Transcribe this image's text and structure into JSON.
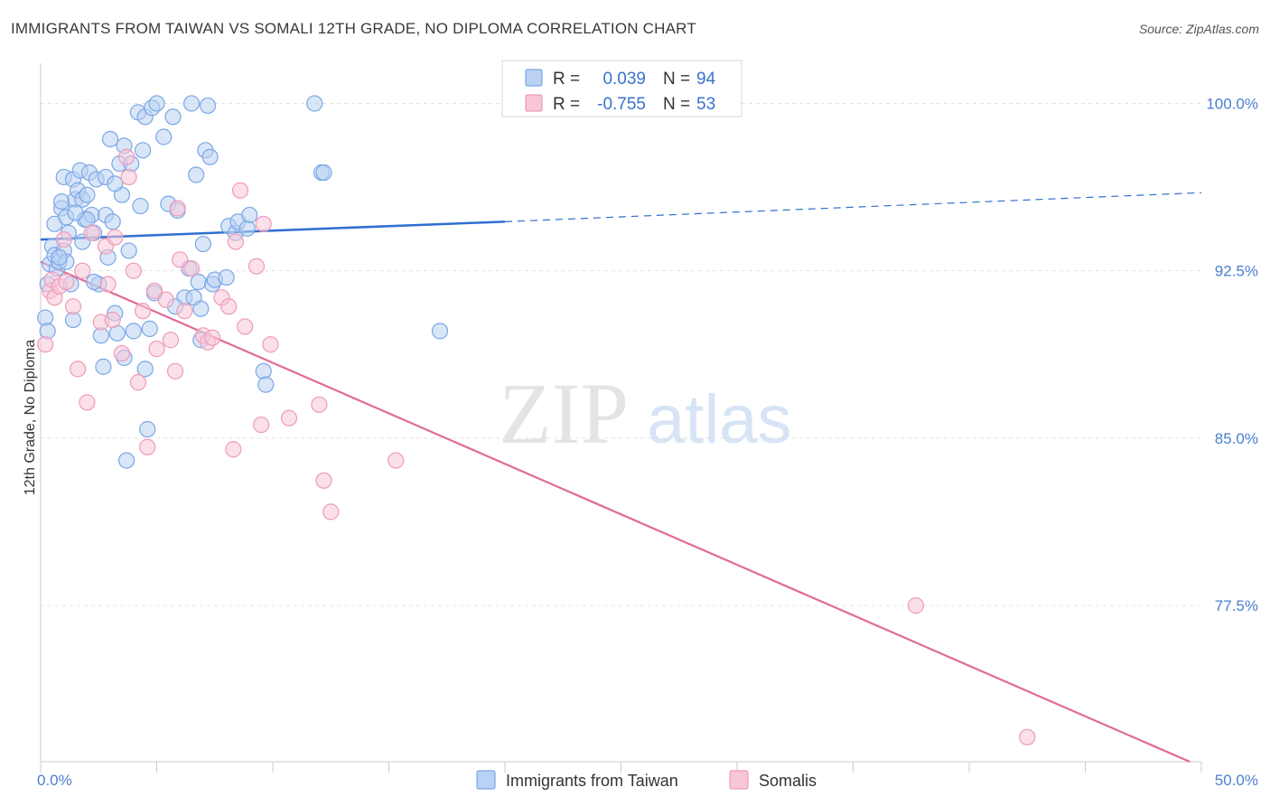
{
  "header": {
    "title": "IMMIGRANTS FROM TAIWAN VS SOMALI 12TH GRADE, NO DIPLOMA CORRELATION CHART",
    "source": "Source: ZipAtlas.com"
  },
  "watermark": {
    "zip": "ZIP",
    "atlas": "atlas"
  },
  "chart_data": {
    "type": "scatter",
    "title": "IMMIGRANTS FROM TAIWAN VS SOMALI 12TH GRADE, NO DIPLOMA CORRELATION CHART",
    "ylabel": "12th Grade, No Diploma",
    "xlim": [
      0,
      50
    ],
    "ylim": [
      70.5,
      101.8
    ],
    "x_tick_labels": [
      {
        "value": 0,
        "label": "0.0%"
      },
      {
        "value": 50,
        "label": "50.0%"
      }
    ],
    "y_ticks": [
      {
        "value": 100,
        "label": "100.0%"
      },
      {
        "value": 92.5,
        "label": "92.5%"
      },
      {
        "value": 85,
        "label": "85.0%"
      },
      {
        "value": 77.5,
        "label": "77.5%"
      }
    ],
    "grid": true,
    "legend_placement": "top-center",
    "series": [
      {
        "name": "Immigrants from Taiwan",
        "color": "#7aa7e6",
        "fill": "#b9d1f3",
        "r_label": "R =",
        "r_value": "0.039",
        "n_label": "N =",
        "n_value": "94",
        "trend": {
          "x0": 0,
          "y0": 93.9,
          "x1": 20,
          "y1": 94.7,
          "x_end": 50,
          "y_end": 96.0,
          "color": "#2f6fd0"
        },
        "points": [
          [
            0.2,
            90.4
          ],
          [
            0.3,
            89.8
          ],
          [
            0.3,
            91.9
          ],
          [
            0.4,
            92.8
          ],
          [
            0.5,
            93.6
          ],
          [
            0.6,
            93.2
          ],
          [
            0.6,
            94.6
          ],
          [
            0.7,
            92.6
          ],
          [
            0.8,
            92.9
          ],
          [
            0.9,
            95.3
          ],
          [
            0.9,
            95.6
          ],
          [
            1.0,
            96.7
          ],
          [
            1.0,
            93.4
          ],
          [
            1.1,
            94.9
          ],
          [
            1.2,
            94.2
          ],
          [
            1.3,
            91.9
          ],
          [
            1.4,
            96.6
          ],
          [
            1.4,
            90.3
          ],
          [
            1.5,
            95.7
          ],
          [
            1.6,
            96.1
          ],
          [
            1.7,
            97.0
          ],
          [
            1.8,
            93.8
          ],
          [
            1.8,
            95.7
          ],
          [
            1.9,
            94.8
          ],
          [
            2.0,
            95.9
          ],
          [
            2.1,
            96.9
          ],
          [
            2.2,
            95.0
          ],
          [
            2.3,
            94.2
          ],
          [
            2.4,
            96.6
          ],
          [
            2.5,
            91.9
          ],
          [
            2.6,
            89.6
          ],
          [
            2.7,
            88.2
          ],
          [
            2.8,
            96.7
          ],
          [
            2.8,
            95.0
          ],
          [
            2.9,
            93.1
          ],
          [
            3.0,
            98.4
          ],
          [
            3.1,
            94.7
          ],
          [
            3.2,
            90.6
          ],
          [
            3.3,
            89.7
          ],
          [
            3.4,
            97.3
          ],
          [
            3.5,
            95.9
          ],
          [
            3.6,
            88.6
          ],
          [
            3.6,
            98.1
          ],
          [
            3.7,
            84.0
          ],
          [
            3.8,
            93.4
          ],
          [
            3.9,
            97.3
          ],
          [
            4.0,
            89.8
          ],
          [
            4.2,
            99.6
          ],
          [
            4.3,
            95.4
          ],
          [
            4.4,
            97.9
          ],
          [
            4.5,
            99.4
          ],
          [
            4.6,
            85.4
          ],
          [
            4.7,
            89.9
          ],
          [
            4.8,
            99.8
          ],
          [
            4.9,
            91.5
          ],
          [
            5.0,
            100.0
          ],
          [
            5.3,
            98.5
          ],
          [
            5.5,
            95.5
          ],
          [
            5.7,
            99.4
          ],
          [
            5.9,
            95.2
          ],
          [
            6.2,
            91.3
          ],
          [
            6.4,
            92.6
          ],
          [
            6.5,
            100.0
          ],
          [
            6.6,
            91.3
          ],
          [
            6.7,
            96.8
          ],
          [
            6.8,
            92.0
          ],
          [
            6.9,
            89.4
          ],
          [
            7.0,
            93.7
          ],
          [
            7.1,
            97.9
          ],
          [
            7.2,
            99.9
          ],
          [
            7.3,
            97.6
          ],
          [
            7.4,
            91.9
          ],
          [
            7.5,
            92.1
          ],
          [
            8.0,
            92.2
          ],
          [
            8.1,
            94.5
          ],
          [
            8.4,
            94.2
          ],
          [
            8.5,
            94.7
          ],
          [
            8.9,
            94.4
          ],
          [
            9.0,
            95.0
          ],
          [
            9.6,
            88.0
          ],
          [
            9.7,
            87.4
          ],
          [
            11.8,
            100.0
          ],
          [
            12.1,
            96.9
          ],
          [
            12.2,
            96.9
          ],
          [
            17.2,
            89.8
          ],
          [
            1.1,
            92.9
          ],
          [
            0.8,
            93.1
          ],
          [
            2.0,
            94.8
          ],
          [
            3.2,
            96.4
          ],
          [
            5.8,
            90.9
          ],
          [
            6.9,
            90.8
          ],
          [
            4.5,
            88.1
          ],
          [
            2.3,
            92.0
          ],
          [
            1.5,
            95.1
          ]
        ]
      },
      {
        "name": "Somalis",
        "color": "#ef9ab8",
        "fill": "#f7c6d7",
        "r_label": "R =",
        "r_value": "-0.755",
        "n_label": "N =",
        "n_value": "53",
        "trend": {
          "x0": 0,
          "y0": 92.9,
          "x1": 49.5,
          "y1": 70.5,
          "color": "#e06a98"
        },
        "points": [
          [
            0.2,
            89.2
          ],
          [
            0.4,
            91.6
          ],
          [
            0.5,
            92.1
          ],
          [
            0.6,
            91.3
          ],
          [
            0.8,
            91.8
          ],
          [
            1.0,
            93.9
          ],
          [
            1.1,
            92.0
          ],
          [
            1.4,
            90.9
          ],
          [
            1.6,
            88.1
          ],
          [
            1.8,
            92.5
          ],
          [
            2.0,
            86.6
          ],
          [
            2.2,
            94.2
          ],
          [
            2.6,
            90.2
          ],
          [
            2.8,
            93.6
          ],
          [
            2.9,
            91.9
          ],
          [
            3.2,
            94.0
          ],
          [
            3.5,
            88.8
          ],
          [
            3.7,
            97.6
          ],
          [
            3.8,
            96.7
          ],
          [
            4.0,
            92.5
          ],
          [
            4.2,
            87.5
          ],
          [
            4.4,
            90.7
          ],
          [
            4.6,
            84.6
          ],
          [
            4.9,
            91.6
          ],
          [
            5.0,
            89.0
          ],
          [
            5.4,
            91.2
          ],
          [
            5.6,
            89.4
          ],
          [
            5.8,
            88.0
          ],
          [
            5.9,
            95.3
          ],
          [
            6.2,
            90.7
          ],
          [
            6.5,
            92.6
          ],
          [
            7.0,
            89.6
          ],
          [
            7.2,
            89.3
          ],
          [
            7.4,
            89.5
          ],
          [
            7.8,
            91.3
          ],
          [
            8.1,
            90.9
          ],
          [
            8.3,
            84.5
          ],
          [
            8.4,
            93.8
          ],
          [
            8.6,
            96.1
          ],
          [
            8.8,
            90.0
          ],
          [
            9.3,
            92.7
          ],
          [
            9.6,
            94.6
          ],
          [
            9.5,
            85.6
          ],
          [
            9.9,
            89.2
          ],
          [
            10.7,
            85.9
          ],
          [
            12.0,
            86.5
          ],
          [
            12.2,
            83.1
          ],
          [
            12.5,
            81.7
          ],
          [
            15.3,
            84.0
          ],
          [
            37.7,
            77.5
          ],
          [
            42.5,
            71.6
          ],
          [
            3.1,
            90.3
          ],
          [
            6.0,
            93.0
          ]
        ]
      }
    ]
  }
}
